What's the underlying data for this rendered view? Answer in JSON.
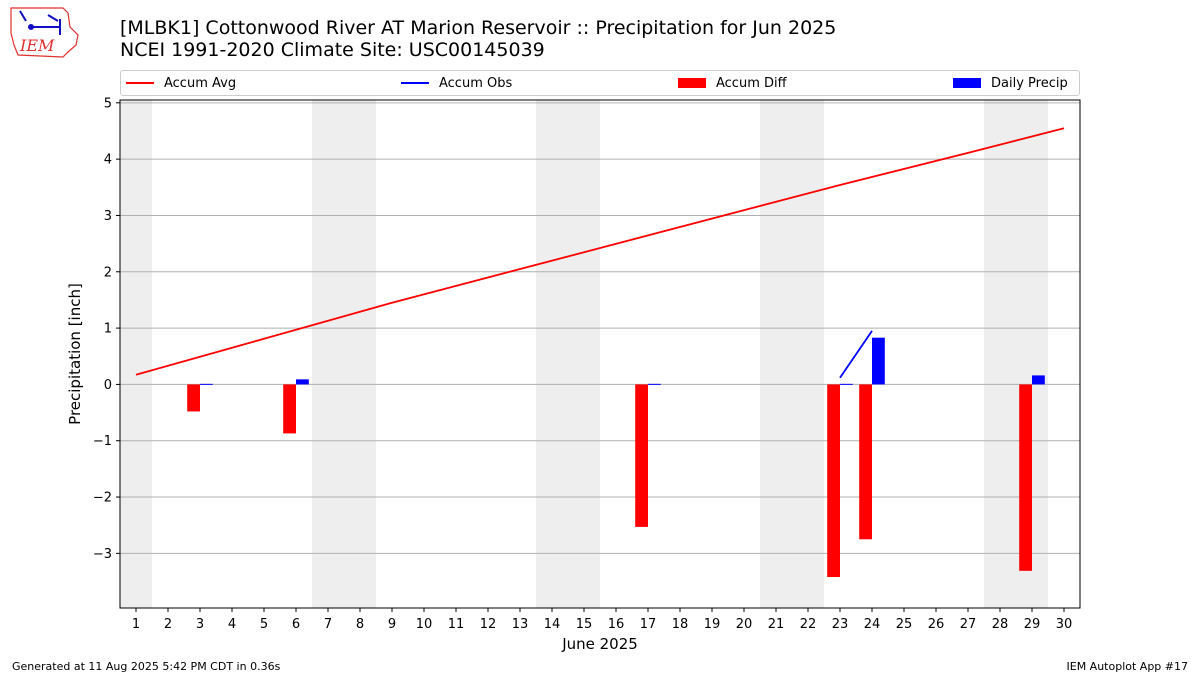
{
  "header": {
    "title_line1": "[MLBK1] Cottonwood River  AT Marion Reservoir :: Precipitation for Jun 2025",
    "title_line2": "NCEI 1991-2020 Climate Site: USC00145039",
    "logo_text": "IEM"
  },
  "legend": {
    "accum_avg": "Accum Avg",
    "accum_obs": "Accum Obs",
    "accum_diff": "Accum Diff",
    "daily_precip": "Daily Precip"
  },
  "footer": {
    "generated": "Generated at 11 Aug 2025 5:42 PM CDT in 0.36s",
    "app": "IEM Autoplot App #17"
  },
  "colors": {
    "avg": "#ff0000",
    "obs": "#0000ff",
    "diff": "#ff0000",
    "daily": "#0000ff",
    "weekend": "#eeeeee",
    "grid": "#b0b0b0",
    "logo": "#e03030"
  },
  "chart_data": {
    "type": "bar",
    "xlabel": "June 2025",
    "ylabel": "Precipitation [inch]",
    "xlim": [
      0.5,
      30.5
    ],
    "ylim": [
      -3.97,
      5.05
    ],
    "yticks": [
      -3,
      -2,
      -1,
      0,
      1,
      2,
      3,
      4,
      5
    ],
    "ytick_labels": [
      "−3",
      "−2",
      "−1",
      "0",
      "1",
      "2",
      "3",
      "4",
      "5"
    ],
    "xticks": [
      1,
      2,
      3,
      4,
      5,
      6,
      7,
      8,
      9,
      10,
      11,
      12,
      13,
      14,
      15,
      16,
      17,
      18,
      19,
      20,
      21,
      22,
      23,
      24,
      25,
      26,
      27,
      28,
      29,
      30
    ],
    "grid": "horizontal",
    "weekend_bands": [
      [
        0.5,
        1.5
      ],
      [
        6.5,
        8.5
      ],
      [
        13.5,
        15.5
      ],
      [
        20.5,
        22.5
      ],
      [
        27.5,
        29.5
      ]
    ],
    "accum_avg": {
      "x": [
        1,
        9,
        23,
        27,
        30
      ],
      "y": [
        0.17,
        1.45,
        3.54,
        4.11,
        4.55
      ]
    },
    "accum_obs": {
      "x": [
        23,
        24
      ],
      "y": [
        0.12,
        0.95
      ]
    },
    "accum_diff": {
      "x": [
        3,
        6,
        17,
        23,
        24,
        29
      ],
      "y": [
        -0.48,
        -0.87,
        -2.53,
        -3.42,
        -2.75,
        -3.31
      ]
    },
    "daily_precip": {
      "x": [
        3,
        6,
        17,
        23,
        24,
        29
      ],
      "y": [
        0.01,
        0.09,
        0.01,
        0.01,
        0.83,
        0.16
      ]
    }
  }
}
